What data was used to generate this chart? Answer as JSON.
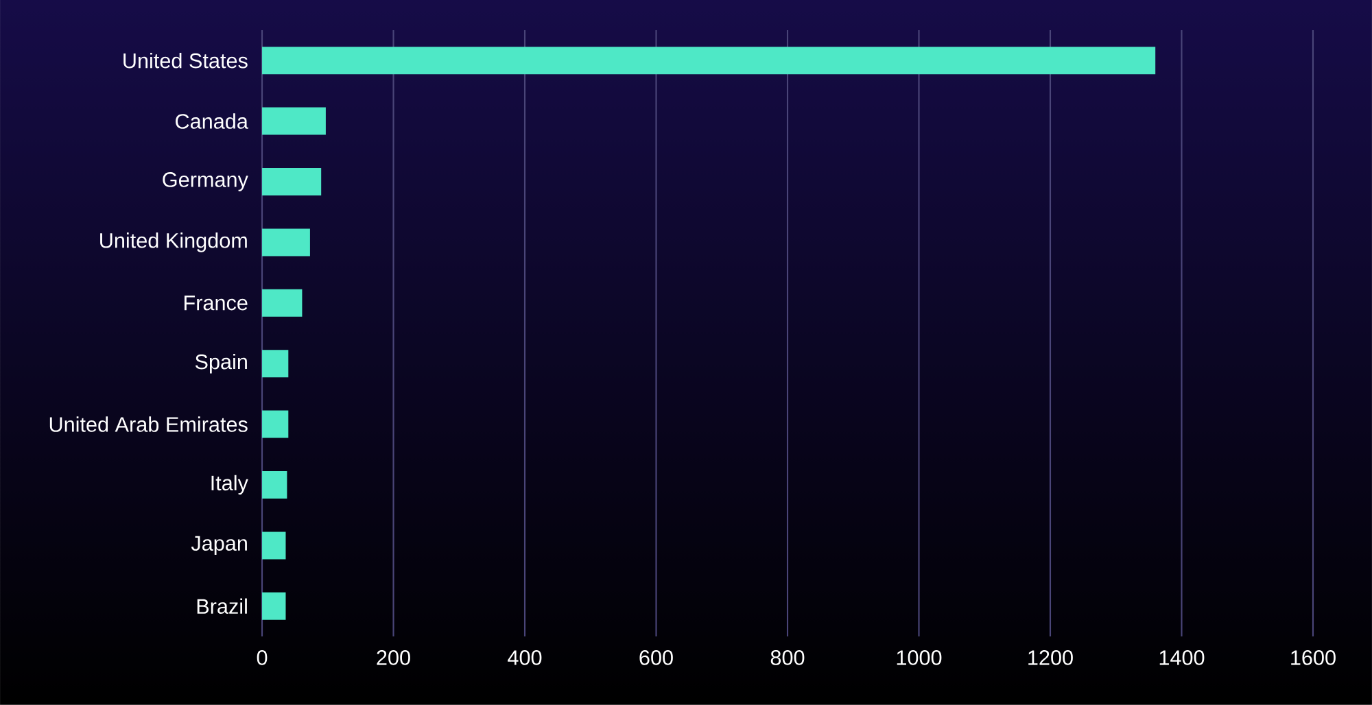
{
  "chart_data": {
    "type": "bar",
    "orientation": "horizontal",
    "categories": [
      "United States",
      "Canada",
      "Germany",
      "United Kingdom",
      "France",
      "Spain",
      "United Arab Emirates",
      "Italy",
      "Japan",
      "Brazil"
    ],
    "values": [
      1360,
      97,
      90,
      73,
      61,
      40,
      40,
      38,
      36,
      36
    ],
    "color": "#4ee8c6",
    "xlim": [
      0,
      1600
    ],
    "xticks": [
      0,
      200,
      400,
      600,
      800,
      1000,
      1200,
      1400,
      1600
    ],
    "grid": "x"
  }
}
